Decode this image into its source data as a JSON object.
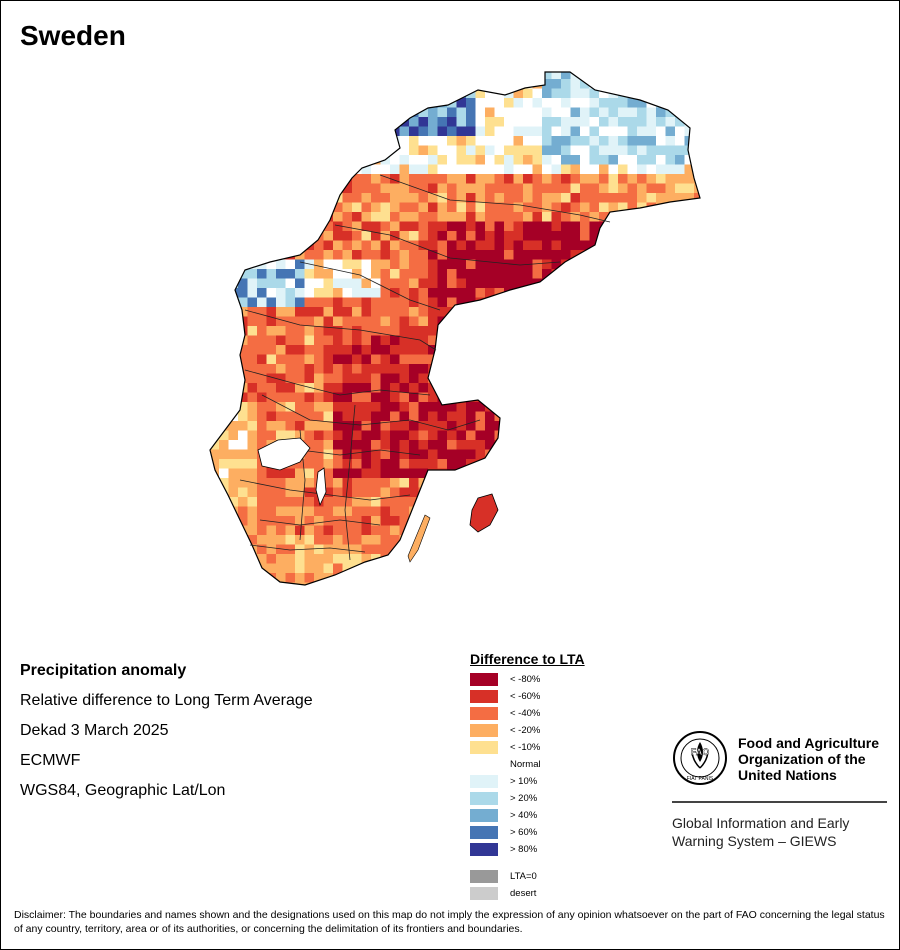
{
  "title": "Sweden",
  "info": {
    "heading": "Precipitation anomaly",
    "line1": "Relative difference to Long Term Average",
    "line2": "Dekad 3 March 2025",
    "line3": "ECMWF",
    "line4": "WGS84, Geographic Lat/Lon"
  },
  "legend": {
    "title": "Difference to LTA",
    "items": [
      {
        "label": "< -80%",
        "color": "#a50026"
      },
      {
        "label": "< -60%",
        "color": "#d73027"
      },
      {
        "label": "< -40%",
        "color": "#f46d43"
      },
      {
        "label": "< -20%",
        "color": "#fdae61"
      },
      {
        "label": "< -10%",
        "color": "#fee090"
      },
      {
        "label": "Normal",
        "color": "#ffffff"
      },
      {
        "label": "> 10%",
        "color": "#e0f3f8"
      },
      {
        "label": "> 20%",
        "color": "#abd9e9"
      },
      {
        "label": "> 40%",
        "color": "#74add1"
      },
      {
        "label": "> 60%",
        "color": "#4575b4"
      },
      {
        "label": "> 80%",
        "color": "#313695"
      },
      {
        "label": "LTA=0",
        "color": "#999999"
      },
      {
        "label": "desert",
        "color": "#cccccc"
      }
    ]
  },
  "org": {
    "name": "Food and Agriculture Organization of the United Nations",
    "logo_text": "FAO",
    "logo_motto": "FIAT PANIS",
    "system": "Global Information and Early Warning System – GIEWS"
  },
  "disclaimer": "Disclaimer: The boundaries and names shown and the designations used on this map do not imply the expression of any opinion whatsoever on the part of FAO concerning the legal status of any country, territory, area or of its authorities, or concerning the delimitation of its frontiers and boundaries.",
  "map_colors": {
    "extreme_dry": "#a50026",
    "very_dry": "#d73027",
    "dry": "#f46d43",
    "moderate_dry": "#fdae61",
    "slight_dry": "#fee090",
    "normal": "#ffffff",
    "wet10": "#e0f3f8",
    "wet20": "#abd9e9",
    "wet40": "#74add1",
    "wet60": "#4575b4",
    "wet80": "#313695"
  }
}
